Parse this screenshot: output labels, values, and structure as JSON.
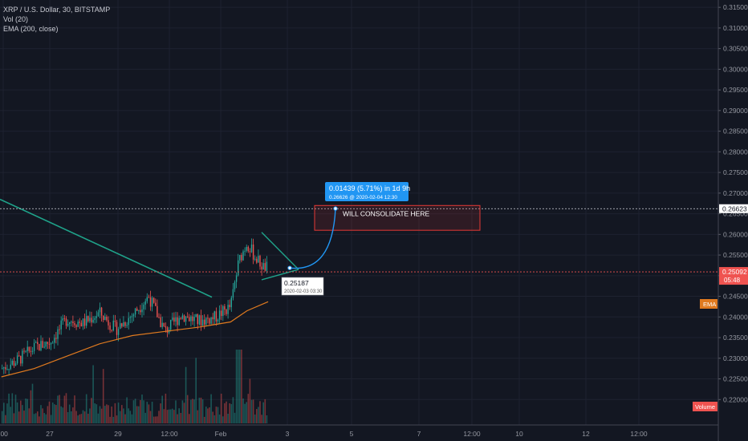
{
  "legend": {
    "symbol_line": "XRP / U.S. Dollar, 30, BITSTAMP",
    "vol_line": "Vol (20)",
    "ema_line": "EMA (200, close)"
  },
  "colors": {
    "background": "#131722",
    "up": "#26a69a",
    "down": "#ef5350",
    "ema": "#e07a1f",
    "trendline": "#1fa38a",
    "projection": "#2196f3",
    "box_border": "#e53935"
  },
  "badges": {
    "price_marker": "0.26623",
    "last_price": "0.25092",
    "countdown": "05:48",
    "ema_tag": "EMA",
    "volume_tag": "Volume"
  },
  "annotations": {
    "consolidation_text": "WILL CONSOLIDATE HERE",
    "measure_title": "0.01439 (5.71%) in 1d 9h",
    "measure_sub": "0.26626 @ 2020-02-04  12:30",
    "point_value": "0.25187",
    "point_time": "2020-02-03 03:30"
  },
  "chart_data": {
    "type": "candlestick",
    "title": "XRP / U.S. Dollar, 30, BITSTAMP",
    "interval": "30",
    "exchange": "BITSTAMP",
    "y_axis_ticks": [
      "0.31500",
      "0.31000",
      "0.30500",
      "0.30000",
      "0.29500",
      "0.29000",
      "0.28500",
      "0.28000",
      "0.27500",
      "0.27000",
      "0.26500",
      "0.26000",
      "0.25500",
      "0.25000",
      "0.24500",
      "0.24000",
      "0.23500",
      "0.23000",
      "0.22500",
      "0.22000"
    ],
    "x_axis_ticks": [
      ":00",
      "27",
      "12:00",
      "29",
      "12:00",
      "Feb",
      "3",
      "5",
      "7",
      "12:00",
      "10",
      "12",
      "12:00"
    ],
    "ylim": [
      0.2185,
      0.316
    ],
    "ema_period": 200,
    "volume_period": 20,
    "price_path": [
      {
        "x": "2020-01-26 00:00",
        "y": 0.2275
      },
      {
        "x": "2020-01-26 12:00",
        "y": 0.2295
      },
      {
        "x": "2020-01-27 00:00",
        "y": 0.2325
      },
      {
        "x": "2020-01-27 12:00",
        "y": 0.234
      },
      {
        "x": "2020-01-28 00:00",
        "y": 0.2395
      },
      {
        "x": "2020-01-28 12:00",
        "y": 0.2385
      },
      {
        "x": "2020-01-29 00:00",
        "y": 0.241
      },
      {
        "x": "2020-01-29 12:00",
        "y": 0.237
      },
      {
        "x": "2020-01-30 00:00",
        "y": 0.2405
      },
      {
        "x": "2020-01-30 12:00",
        "y": 0.245
      },
      {
        "x": "2020-01-31 00:00",
        "y": 0.2365
      },
      {
        "x": "2020-01-31 12:00",
        "y": 0.2405
      },
      {
        "x": "2020-02-01 00:00",
        "y": 0.239
      },
      {
        "x": "2020-02-01 12:00",
        "y": 0.2398
      },
      {
        "x": "2020-02-02 00:00",
        "y": 0.2425
      },
      {
        "x": "2020-02-02 06:00",
        "y": 0.2535
      },
      {
        "x": "2020-02-02 12:00",
        "y": 0.258
      },
      {
        "x": "2020-02-02 18:00",
        "y": 0.2545
      },
      {
        "x": "2020-02-03 00:00",
        "y": 0.252
      },
      {
        "x": "2020-02-03 03:30",
        "y": 0.25187
      }
    ],
    "ema_path": [
      {
        "x": "2020-01-26 00:00",
        "y": 0.2255
      },
      {
        "x": "2020-01-27 00:00",
        "y": 0.2275
      },
      {
        "x": "2020-01-28 00:00",
        "y": 0.2305
      },
      {
        "x": "2020-01-29 00:00",
        "y": 0.2335
      },
      {
        "x": "2020-01-30 00:00",
        "y": 0.2355
      },
      {
        "x": "2020-01-31 00:00",
        "y": 0.2365
      },
      {
        "x": "2020-02-01 00:00",
        "y": 0.2375
      },
      {
        "x": "2020-02-02 00:00",
        "y": 0.2388
      },
      {
        "x": "2020-02-02 12:00",
        "y": 0.2415
      },
      {
        "x": "2020-02-03 03:30",
        "y": 0.2437
      }
    ],
    "last_price": 0.25092,
    "consolidation_zone": {
      "top": 0.267,
      "bottom": 0.261
    },
    "projection": {
      "change": 0.01439,
      "percent": 5.71,
      "target": 0.26626,
      "duration": "1d 9h"
    }
  }
}
